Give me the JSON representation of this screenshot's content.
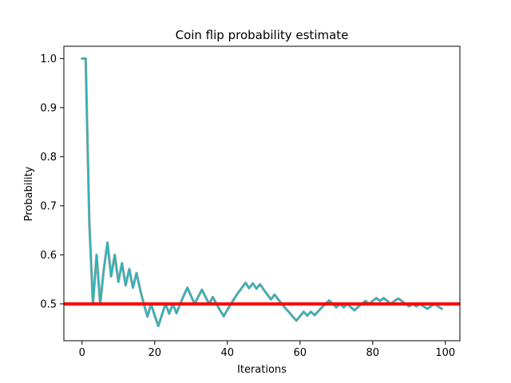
{
  "chart_data": {
    "type": "line",
    "title": "Coin flip probability estimate",
    "xlabel": "Iterations",
    "ylabel": "Probability",
    "xlim": [
      -5,
      104
    ],
    "ylim": [
      0.425,
      1.025
    ],
    "xticks": [
      0,
      20,
      40,
      60,
      80,
      100
    ],
    "yticks": [
      0.5,
      0.6,
      0.7,
      0.8,
      0.9,
      1.0
    ],
    "xtick_labels": [
      "0",
      "20",
      "40",
      "60",
      "80",
      "100"
    ],
    "ytick_labels": [
      "0.5",
      "0.6",
      "0.7",
      "0.8",
      "0.9",
      "1.0"
    ],
    "grid": false,
    "reference_line": {
      "y": 0.5,
      "color": "#ff0000"
    },
    "series": [
      {
        "color": "#2ab5b8",
        "x": [
          0,
          1,
          2,
          3,
          4,
          5,
          6,
          7,
          8,
          9,
          10,
          11,
          12,
          13,
          14,
          15,
          16,
          17,
          18,
          19,
          20,
          21,
          22,
          23,
          24,
          25,
          26,
          27,
          28,
          29,
          30,
          31,
          32,
          33,
          34,
          35,
          36,
          37,
          38,
          39,
          40,
          41,
          42,
          43,
          44,
          45,
          46,
          47,
          48,
          49,
          50,
          51,
          52,
          53,
          54,
          55,
          56,
          57,
          58,
          59,
          60,
          61,
          62,
          63,
          64,
          65,
          66,
          67,
          68,
          69,
          70,
          71,
          72,
          73,
          74,
          75,
          76,
          77,
          78,
          79,
          80,
          81,
          82,
          83,
          84,
          85,
          86,
          87,
          88,
          89,
          90,
          91,
          92,
          93,
          94,
          95,
          96,
          97,
          98,
          99
        ],
        "y": [
          1.0,
          1.0,
          0.667,
          0.5,
          0.6,
          0.5,
          0.571,
          0.625,
          0.556,
          0.6,
          0.545,
          0.583,
          0.538,
          0.571,
          0.533,
          0.563,
          0.529,
          0.5,
          0.474,
          0.5,
          0.476,
          0.455,
          0.478,
          0.5,
          0.48,
          0.5,
          0.481,
          0.5,
          0.517,
          0.533,
          0.516,
          0.5,
          0.515,
          0.529,
          0.514,
          0.5,
          0.514,
          0.5,
          0.487,
          0.475,
          0.488,
          0.5,
          0.512,
          0.523,
          0.533,
          0.543,
          0.532,
          0.542,
          0.531,
          0.54,
          0.529,
          0.519,
          0.509,
          0.519,
          0.509,
          0.5,
          0.491,
          0.483,
          0.474,
          0.466,
          0.475,
          0.484,
          0.476,
          0.484,
          0.477,
          0.485,
          0.493,
          0.5,
          0.507,
          0.5,
          0.493,
          0.5,
          0.493,
          0.5,
          0.493,
          0.487,
          0.494,
          0.5,
          0.506,
          0.5,
          0.506,
          0.512,
          0.506,
          0.512,
          0.506,
          0.5,
          0.506,
          0.511,
          0.506,
          0.5,
          0.495,
          0.5,
          0.495,
          0.5,
          0.495,
          0.49,
          0.495,
          0.5,
          0.495,
          0.49
        ]
      }
    ]
  }
}
